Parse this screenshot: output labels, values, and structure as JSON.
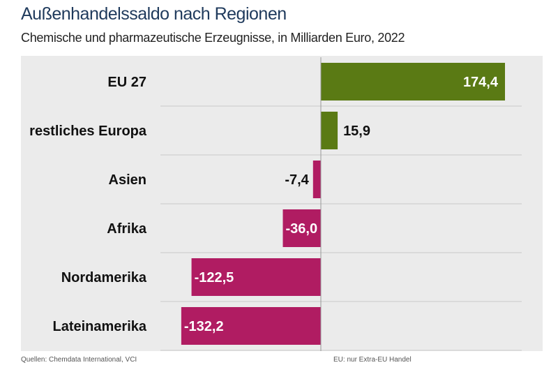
{
  "chart_data": {
    "type": "bar",
    "orientation": "horizontal",
    "title": "Außenhandelssaldo nach Regionen",
    "subtitle": "Chemische und pharmazeutische Erzeugnisse, in Milliarden Euro, 2022",
    "categories": [
      "EU 27",
      "restliches Europa",
      "Asien",
      "Afrika",
      "Nordamerika",
      "Lateinamerika"
    ],
    "values": [
      174.4,
      15.9,
      -7.4,
      -36.0,
      -122.5,
      -132.2
    ],
    "labels": [
      "174,4",
      "15,9",
      "-7,4",
      "-36,0",
      "-122,5",
      "-132,2"
    ],
    "colors": {
      "positive": "#5a7a14",
      "negative": "#b01c62"
    },
    "grid": false
  },
  "footer": {
    "source": "Quellen: Chemdata International, VCI",
    "note": "EU: nur Extra-EU Handel"
  }
}
